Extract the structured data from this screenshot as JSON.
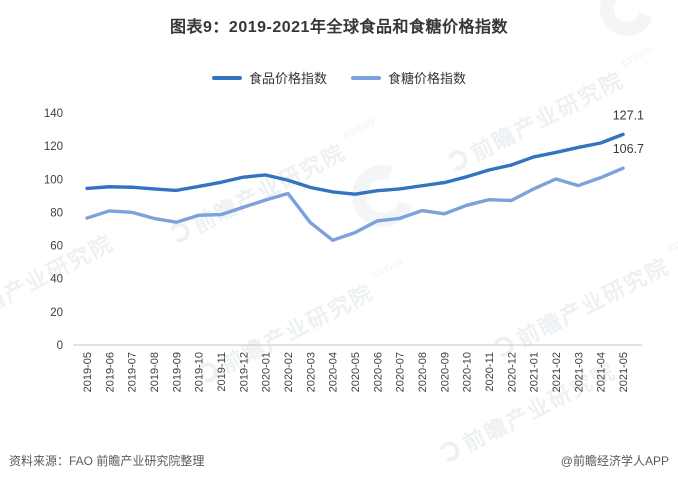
{
  "title": "图表9：2019-2021年全球食品和食糖价格指数",
  "chart_data": {
    "type": "line",
    "categories": [
      "2019-05",
      "2019-06",
      "2019-07",
      "2019-08",
      "2019-09",
      "2019-10",
      "2019-11",
      "2019-12",
      "2020-01",
      "2020-02",
      "2020-03",
      "2020-04",
      "2020-05",
      "2020-06",
      "2020-07",
      "2020-08",
      "2020-09",
      "2020-10",
      "2020-11",
      "2020-12",
      "2021-01",
      "2021-02",
      "2021-03",
      "2021-04",
      "2021-05"
    ],
    "series": [
      {
        "name": "食品价格指数",
        "color": "#3473BD",
        "end_label": "127.1",
        "values": [
          94.5,
          95.5,
          95.2,
          94.2,
          93.3,
          95.7,
          98.2,
          101.3,
          102.6,
          99.4,
          95.1,
          92.4,
          91.0,
          93.1,
          94.2,
          96.1,
          98.0,
          101.5,
          105.6,
          108.6,
          113.5,
          116.2,
          119.2,
          121.9,
          127.1
        ]
      },
      {
        "name": "食糖价格指数",
        "color": "#7CA2DB",
        "end_label": "106.7",
        "values": [
          76.6,
          80.9,
          80.1,
          76.4,
          74.1,
          78.3,
          78.7,
          83.1,
          87.5,
          91.4,
          73.9,
          63.2,
          67.8,
          74.9,
          76.4,
          81.1,
          79.2,
          84.3,
          87.7,
          87.2,
          94.2,
          100.2,
          96.2,
          101.0,
          106.7
        ]
      }
    ],
    "ylim": [
      0,
      140
    ],
    "ytick_step": 20,
    "grid": false,
    "legend_position": "top",
    "xlabel": "",
    "ylabel": ""
  },
  "footer": {
    "source": "资料来源：FAO 前瞻产业研究院整理",
    "credit": "@前瞻经济学人APP"
  },
  "watermark": {
    "text": "前瞻产业研究院",
    "digits": "839599"
  }
}
